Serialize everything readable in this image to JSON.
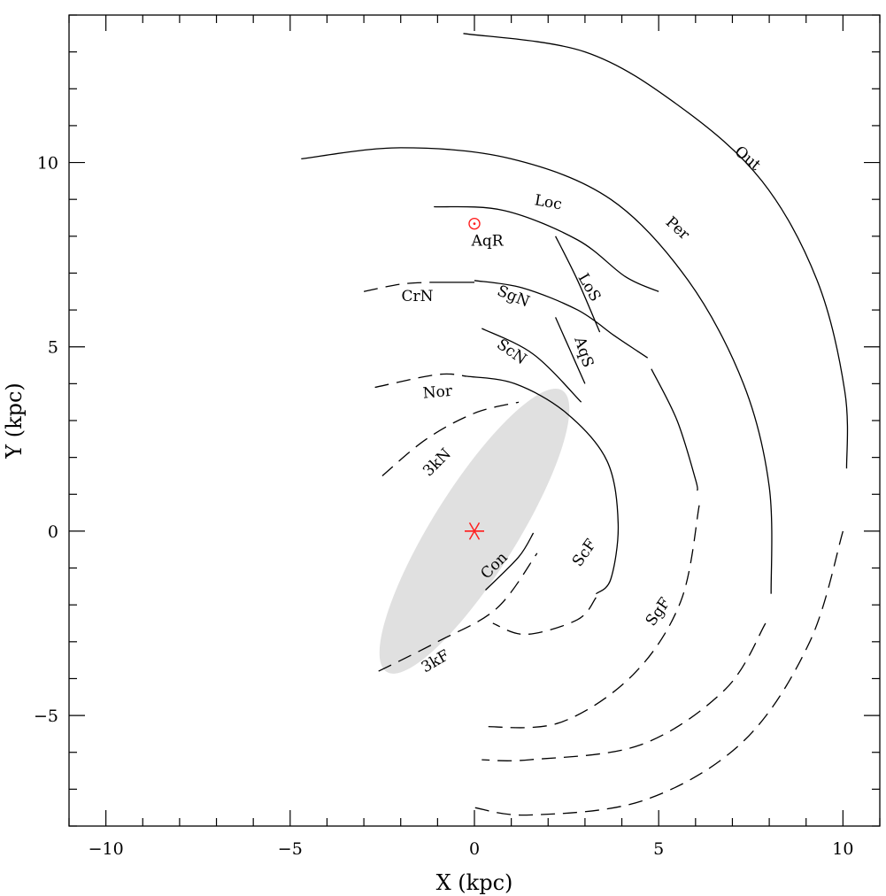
{
  "chart_data": {
    "type": "diagram",
    "xlabel": "X (kpc)",
    "ylabel": "Y (kpc)",
    "xlim": [
      -11,
      11
    ],
    "ylim": [
      -8,
      14
    ],
    "x_ticks": [
      -10,
      -5,
      0,
      5,
      10
    ],
    "y_ticks": [
      -5,
      0,
      5,
      10
    ],
    "x_tick_labels": [
      "−10",
      "−5",
      "0",
      "5",
      "10"
    ],
    "y_tick_labels": [
      "−5",
      "0",
      "5",
      "10"
    ],
    "colors": {
      "bar": "#e0e0e0",
      "markers": "#ff2020",
      "lines": "#000000"
    },
    "bar": {
      "center": [
        0,
        0
      ],
      "semi_major": 4.5,
      "semi_minor": 1.15,
      "angle_deg": 58
    },
    "sun": {
      "x": 0.0,
      "y": 8.34,
      "symbol": "sun-symbol"
    },
    "galactic_center": {
      "x": 0.0,
      "y": 0.0,
      "symbol": "asterisk"
    },
    "arms": [
      {
        "name": "Out",
        "label": "Out",
        "dash": false,
        "points": [
          [
            -0.3,
            13.5
          ],
          [
            3.0,
            13.0
          ],
          [
            5.6,
            11.5
          ],
          [
            7.8,
            9.5
          ],
          [
            9.3,
            6.8
          ],
          [
            10.05,
            3.8
          ],
          [
            10.1,
            1.7
          ]
        ]
      },
      {
        "name": "Out-far",
        "label": "",
        "dash": true,
        "points": [
          [
            10.0,
            0.0
          ],
          [
            9.1,
            -3.0
          ],
          [
            7.3,
            -5.7
          ],
          [
            4.6,
            -7.3
          ],
          [
            1.5,
            -7.7
          ],
          [
            0,
            -7.5
          ]
        ]
      },
      {
        "name": "Per",
        "label": "Per",
        "dash": false,
        "points": [
          [
            -4.7,
            10.1
          ],
          [
            -2.0,
            10.4
          ],
          [
            1.0,
            10.1
          ],
          [
            3.7,
            9.0
          ],
          [
            5.8,
            6.8
          ],
          [
            7.3,
            4.0
          ],
          [
            8.0,
            1.2
          ],
          [
            8.05,
            -1.7
          ]
        ]
      },
      {
        "name": "Per-far",
        "label": "",
        "dash": true,
        "points": [
          [
            7.9,
            -2.5
          ],
          [
            6.8,
            -4.3
          ],
          [
            4.5,
            -5.8
          ],
          [
            1.5,
            -6.2
          ],
          [
            0.2,
            -6.2
          ]
        ]
      },
      {
        "name": "Loc",
        "label": "Loc",
        "dash": false,
        "points": [
          [
            -1.1,
            8.8
          ],
          [
            0.8,
            8.7
          ],
          [
            2.8,
            7.9
          ],
          [
            4.1,
            6.9
          ],
          [
            5.0,
            6.5
          ]
        ]
      },
      {
        "name": "SgN",
        "label": "SgN",
        "dash": false,
        "points": [
          [
            0.0,
            6.8
          ],
          [
            1.3,
            6.6
          ],
          [
            2.8,
            6.0
          ],
          [
            3.8,
            5.3
          ],
          [
            4.4,
            4.9
          ]
        ]
      },
      {
        "name": "SgN-tail",
        "label": "",
        "dash": true,
        "points": [
          [
            4.4,
            4.9
          ],
          [
            4.7,
            4.7
          ]
        ]
      },
      {
        "name": "SgF",
        "label": "SgF",
        "dash": false,
        "points": [
          [
            4.8,
            4.4
          ],
          [
            5.5,
            3.0
          ],
          [
            6.0,
            1.4
          ],
          [
            6.05,
            1.1
          ]
        ]
      },
      {
        "name": "SgF-far",
        "label": "",
        "dash": true,
        "points": [
          [
            6.1,
            0.7
          ],
          [
            5.6,
            -1.9
          ],
          [
            4.3,
            -3.9
          ],
          [
            2.3,
            -5.2
          ],
          [
            0.2,
            -5.3
          ]
        ]
      },
      {
        "name": "CrN",
        "label": "CrN",
        "dash": true,
        "points": [
          [
            -3.0,
            6.5
          ],
          [
            -2.0,
            6.7
          ],
          [
            -1.2,
            6.75
          ]
        ]
      },
      {
        "name": "CrN-solid",
        "label": "",
        "dash": false,
        "points": [
          [
            -1.2,
            6.75
          ],
          [
            0.0,
            6.75
          ]
        ]
      },
      {
        "name": "ScN",
        "label": "ScN",
        "dash": false,
        "points": [
          [
            0.2,
            5.5
          ],
          [
            1.6,
            4.8
          ],
          [
            2.9,
            3.5
          ]
        ]
      },
      {
        "name": "LoS",
        "label": "LoS",
        "dash": false,
        "points": [
          [
            2.2,
            8.0
          ],
          [
            2.8,
            6.8
          ],
          [
            3.4,
            5.4
          ]
        ]
      },
      {
        "name": "AqS",
        "label": "AqS",
        "dash": false,
        "points": [
          [
            2.2,
            5.8
          ],
          [
            2.6,
            4.9
          ],
          [
            3.0,
            4.0
          ]
        ]
      },
      {
        "name": "Nor",
        "label": "Nor",
        "dash": true,
        "points": [
          [
            -2.7,
            3.9
          ],
          [
            -1.0,
            4.25
          ],
          [
            -0.2,
            4.2
          ]
        ]
      },
      {
        "name": "Nor-solid",
        "label": "",
        "dash": false,
        "points": [
          [
            -0.2,
            4.2
          ],
          [
            1.1,
            4.0
          ],
          [
            2.5,
            3.2
          ],
          [
            3.6,
            1.9
          ],
          [
            3.9,
            0.2
          ],
          [
            3.7,
            -1.3
          ],
          [
            3.3,
            -1.7
          ]
        ]
      },
      {
        "name": "ScF",
        "label": "ScF",
        "dash": true,
        "points": [
          [
            3.3,
            -1.8
          ],
          [
            2.8,
            -2.4
          ],
          [
            1.4,
            -2.8
          ],
          [
            0.5,
            -2.5
          ]
        ]
      },
      {
        "name": "3kN",
        "label": "3kN",
        "dash": true,
        "points": [
          [
            -2.5,
            1.5
          ],
          [
            -1.3,
            2.5
          ],
          [
            0.0,
            3.2
          ],
          [
            1.2,
            3.5
          ]
        ]
      },
      {
        "name": "3kF",
        "label": "3kF",
        "dash": true,
        "points": [
          [
            -2.6,
            -3.8
          ],
          [
            -1.0,
            -3.0
          ],
          [
            0.6,
            -2.1
          ],
          [
            1.7,
            -0.6
          ]
        ]
      },
      {
        "name": "Con",
        "label": "Con",
        "dash": false,
        "points": [
          [
            0.3,
            -1.6
          ],
          [
            1.2,
            -0.7
          ],
          [
            1.6,
            -0.05
          ]
        ]
      }
    ],
    "arm_labels": [
      {
        "text": "Out",
        "x": 7.4,
        "y": 10.1,
        "rot": 40
      },
      {
        "text": "Per",
        "x": 5.5,
        "y": 8.2,
        "rot": 42
      },
      {
        "text": "Loc",
        "x": 2.0,
        "y": 8.9,
        "rot": 10
      },
      {
        "text": "AqR",
        "x": 0.35,
        "y": 7.85,
        "rot": 0
      },
      {
        "text": "LoS",
        "x": 3.1,
        "y": 6.6,
        "rot": 60
      },
      {
        "text": "CrN",
        "x": -1.55,
        "y": 6.35,
        "rot": 0
      },
      {
        "text": "SgN",
        "x": 1.05,
        "y": 6.35,
        "rot": 22
      },
      {
        "text": "AqS",
        "x": 2.95,
        "y": 4.85,
        "rot": 72
      },
      {
        "text": "ScN",
        "x": 1.0,
        "y": 4.85,
        "rot": 35
      },
      {
        "text": "Nor",
        "x": -1.0,
        "y": 3.75,
        "rot": -5
      },
      {
        "text": "3kN",
        "x": -1.0,
        "y": 1.85,
        "rot": -45
      },
      {
        "text": "Con",
        "x": 0.55,
        "y": -0.95,
        "rot": -45
      },
      {
        "text": "ScF",
        "x": 3.0,
        "y": -0.6,
        "rot": -55
      },
      {
        "text": "SgF",
        "x": 5.0,
        "y": -2.2,
        "rot": -55
      },
      {
        "text": "3kF",
        "x": -1.05,
        "y": -3.55,
        "rot": -30
      }
    ]
  }
}
